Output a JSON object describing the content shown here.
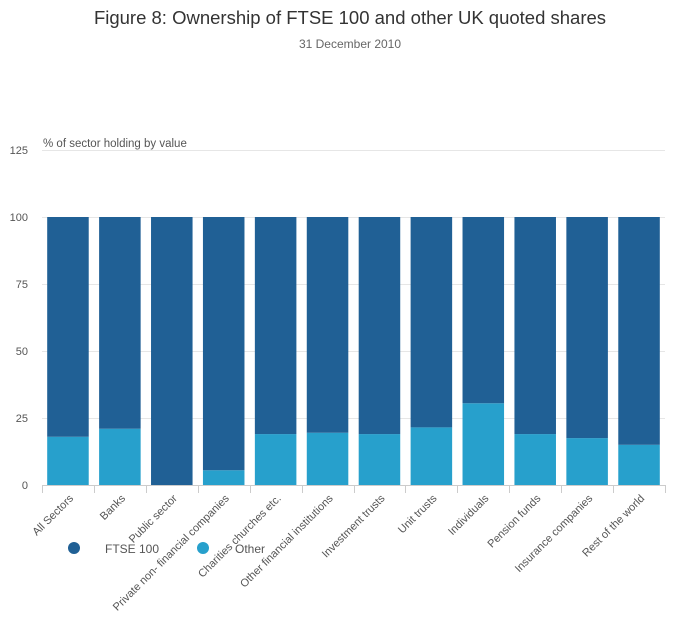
{
  "chart_data": {
    "type": "bar",
    "stacked": true,
    "title": "Figure 8: Ownership of FTSE 100 and other UK quoted shares",
    "subtitle": "31 December 2010",
    "xlabel": "",
    "ylabel": "% of sector holding by value",
    "ylim": [
      0,
      125
    ],
    "yticks": [
      0,
      25,
      50,
      75,
      100,
      125
    ],
    "grid": true,
    "legend_position": "bottom-left",
    "categories": [
      "All Sectors",
      "Banks",
      "Public sector",
      "Private non- financial companies",
      "Charities churches etc.",
      "Other financial institutions",
      "Investment trusts",
      "Unit trusts",
      "Individuals",
      "Pension funds",
      "Insurance companies",
      "Rest of the world"
    ],
    "series": [
      {
        "name": "Other",
        "color": "#27a0cc",
        "values": [
          18,
          21,
          0,
          5.5,
          19,
          19.5,
          19,
          21.5,
          30.5,
          19,
          17.5,
          15
        ]
      },
      {
        "name": "FTSE 100",
        "color": "#206095",
        "values": [
          82,
          79,
          100,
          94.5,
          81,
          80.5,
          81,
          78.5,
          69.5,
          81,
          82.5,
          85
        ]
      }
    ]
  }
}
